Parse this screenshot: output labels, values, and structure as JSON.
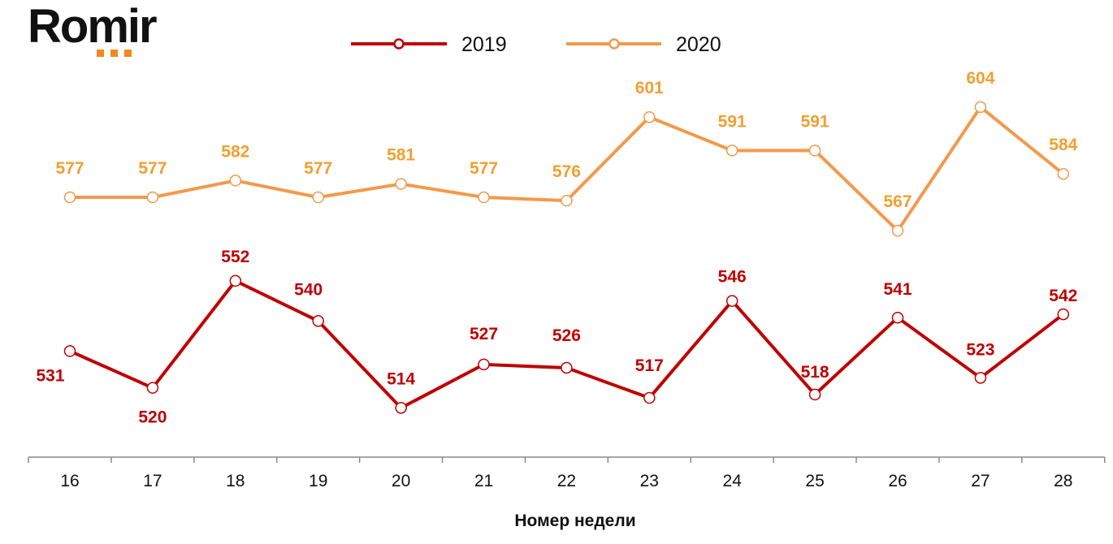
{
  "logo": {
    "text": "Romir",
    "accent_color": "#F08A1C"
  },
  "chart_data": {
    "type": "line",
    "title": "",
    "xlabel": "Номер недели",
    "ylabel": "",
    "categories": [
      "16",
      "17",
      "18",
      "19",
      "20",
      "21",
      "22",
      "23",
      "24",
      "25",
      "26",
      "27",
      "28"
    ],
    "ylim": [
      500,
      620
    ],
    "grid": false,
    "legend_position": "top",
    "series": [
      {
        "name": "2019",
        "color": "#C00000",
        "label_color": "#C00000",
        "values": [
          531,
          520,
          552,
          540,
          514,
          527,
          526,
          517,
          546,
          518,
          541,
          523,
          542
        ]
      },
      {
        "name": "2020",
        "color": "#F4994A",
        "label_color": "#F0A030",
        "values": [
          577,
          577,
          582,
          577,
          581,
          577,
          576,
          601,
          591,
          591,
          567,
          604,
          584
        ]
      }
    ]
  }
}
